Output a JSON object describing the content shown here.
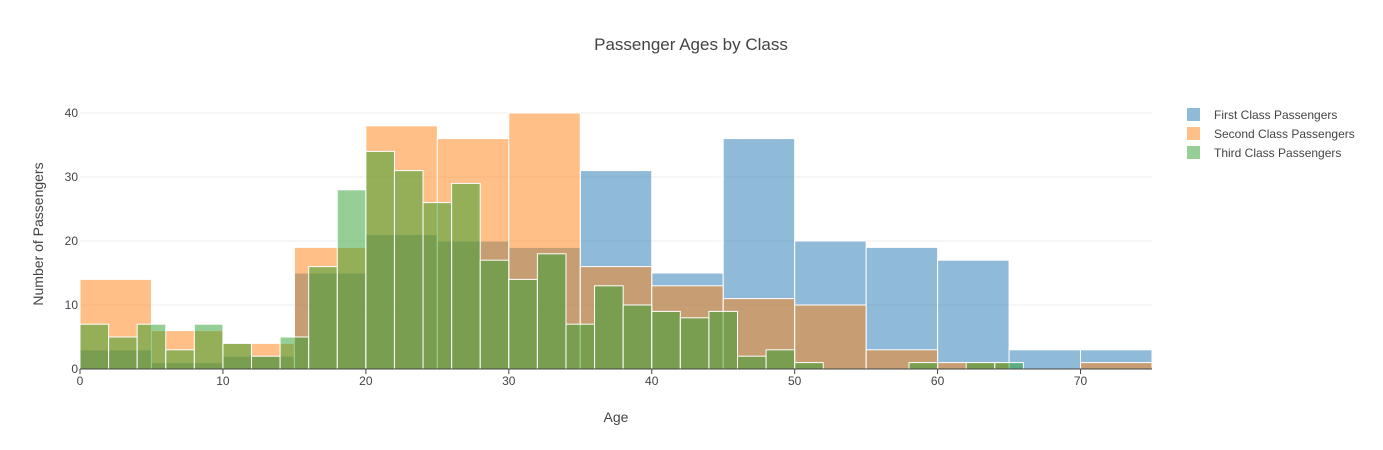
{
  "chart_data": {
    "type": "histogram",
    "title": "Passenger Ages by Class",
    "xlabel": "Age",
    "ylabel": "Number of Passengers",
    "xlim": [
      0,
      75
    ],
    "ylim": [
      0,
      40
    ],
    "xticks": [
      0,
      10,
      20,
      30,
      40,
      50,
      60,
      70
    ],
    "yticks": [
      0,
      10,
      20,
      30,
      40
    ],
    "grid": true,
    "barmode": "overlay",
    "legend_position": "top-right",
    "series": [
      {
        "name": "First Class Passengers",
        "color": "#1f77b4",
        "bin_width": 5,
        "bins": [
          {
            "x0": 0,
            "x1": 5,
            "y": 3
          },
          {
            "x0": 5,
            "x1": 10,
            "y": 1
          },
          {
            "x0": 10,
            "x1": 15,
            "y": 2
          },
          {
            "x0": 15,
            "x1": 20,
            "y": 15
          },
          {
            "x0": 20,
            "x1": 25,
            "y": 21
          },
          {
            "x0": 25,
            "x1": 30,
            "y": 20
          },
          {
            "x0": 30,
            "x1": 35,
            "y": 19
          },
          {
            "x0": 35,
            "x1": 40,
            "y": 31
          },
          {
            "x0": 40,
            "x1": 45,
            "y": 15
          },
          {
            "x0": 45,
            "x1": 50,
            "y": 36
          },
          {
            "x0": 50,
            "x1": 55,
            "y": 20
          },
          {
            "x0": 55,
            "x1": 60,
            "y": 19
          },
          {
            "x0": 60,
            "x1": 65,
            "y": 17
          },
          {
            "x0": 65,
            "x1": 70,
            "y": 3
          },
          {
            "x0": 70,
            "x1": 75,
            "y": 3
          }
        ]
      },
      {
        "name": "Second Class Passengers",
        "color": "#ff7f0e",
        "bin_width": 5,
        "bins": [
          {
            "x0": 0,
            "x1": 5,
            "y": 14
          },
          {
            "x0": 5,
            "x1": 10,
            "y": 6
          },
          {
            "x0": 10,
            "x1": 15,
            "y": 4
          },
          {
            "x0": 15,
            "x1": 20,
            "y": 19
          },
          {
            "x0": 20,
            "x1": 25,
            "y": 38
          },
          {
            "x0": 25,
            "x1": 30,
            "y": 36
          },
          {
            "x0": 30,
            "x1": 35,
            "y": 40
          },
          {
            "x0": 35,
            "x1": 40,
            "y": 16
          },
          {
            "x0": 40,
            "x1": 45,
            "y": 13
          },
          {
            "x0": 45,
            "x1": 50,
            "y": 11
          },
          {
            "x0": 50,
            "x1": 55,
            "y": 10
          },
          {
            "x0": 55,
            "x1": 60,
            "y": 3
          },
          {
            "x0": 60,
            "x1": 65,
            "y": 1
          },
          {
            "x0": 65,
            "x1": 70,
            "y": 0
          },
          {
            "x0": 70,
            "x1": 75,
            "y": 1
          }
        ]
      },
      {
        "name": "Third Class Passengers",
        "color": "#2ca02c",
        "bin_width": 2,
        "bins": [
          {
            "x0": 0,
            "x1": 2,
            "y": 7
          },
          {
            "x0": 2,
            "x1": 4,
            "y": 5
          },
          {
            "x0": 4,
            "x1": 6,
            "y": 7
          },
          {
            "x0": 6,
            "x1": 8,
            "y": 3
          },
          {
            "x0": 8,
            "x1": 10,
            "y": 7
          },
          {
            "x0": 10,
            "x1": 12,
            "y": 4
          },
          {
            "x0": 12,
            "x1": 14,
            "y": 2
          },
          {
            "x0": 14,
            "x1": 16,
            "y": 5
          },
          {
            "x0": 16,
            "x1": 18,
            "y": 16
          },
          {
            "x0": 18,
            "x1": 20,
            "y": 28
          },
          {
            "x0": 20,
            "x1": 22,
            "y": 34
          },
          {
            "x0": 22,
            "x1": 24,
            "y": 31
          },
          {
            "x0": 24,
            "x1": 26,
            "y": 26
          },
          {
            "x0": 26,
            "x1": 28,
            "y": 29
          },
          {
            "x0": 28,
            "x1": 30,
            "y": 17
          },
          {
            "x0": 30,
            "x1": 32,
            "y": 14
          },
          {
            "x0": 32,
            "x1": 34,
            "y": 18
          },
          {
            "x0": 34,
            "x1": 36,
            "y": 7
          },
          {
            "x0": 36,
            "x1": 38,
            "y": 13
          },
          {
            "x0": 38,
            "x1": 40,
            "y": 10
          },
          {
            "x0": 40,
            "x1": 42,
            "y": 9
          },
          {
            "x0": 42,
            "x1": 44,
            "y": 8
          },
          {
            "x0": 44,
            "x1": 46,
            "y": 9
          },
          {
            "x0": 46,
            "x1": 48,
            "y": 2
          },
          {
            "x0": 48,
            "x1": 50,
            "y": 3
          },
          {
            "x0": 50,
            "x1": 52,
            "y": 1
          },
          {
            "x0": 52,
            "x1": 54,
            "y": 0
          },
          {
            "x0": 54,
            "x1": 56,
            "y": 0
          },
          {
            "x0": 56,
            "x1": 58,
            "y": 0
          },
          {
            "x0": 58,
            "x1": 60,
            "y": 1
          },
          {
            "x0": 60,
            "x1": 62,
            "y": 0
          },
          {
            "x0": 62,
            "x1": 64,
            "y": 1
          },
          {
            "x0": 64,
            "x1": 66,
            "y": 1
          }
        ]
      }
    ]
  }
}
